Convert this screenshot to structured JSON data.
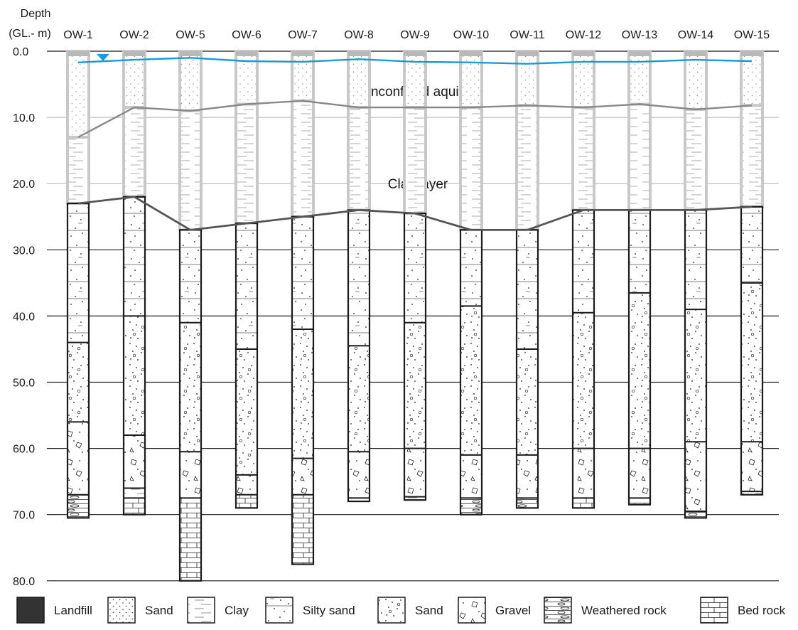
{
  "axis": {
    "title_line1": "Depth",
    "title_line2": "(GL.- m)",
    "ticks": [
      "0.0",
      "10.0",
      "20.0",
      "30.0",
      "40.0",
      "50.0",
      "60.0",
      "70.0",
      "80.0"
    ]
  },
  "region_labels": {
    "aquifer": "Unconfined aquifer",
    "clay": "Clay layer"
  },
  "colors": {
    "water_table": "#1a9ad6",
    "upper_column": "#c8c8c8",
    "boundary": "#888888",
    "ink": "#1a1a1a"
  },
  "wells": [
    {
      "name": "OW-1",
      "aquifer_bottom": 13.0,
      "clay_bottom": 23.0,
      "total_depth": 70.5,
      "lower": [
        [
          "silty_sand",
          23.0,
          44.0
        ],
        [
          "sand",
          44.0,
          56.0
        ],
        [
          "gravel",
          56.0,
          67.0
        ],
        [
          "weathered_rock",
          67.0,
          70.5
        ]
      ]
    },
    {
      "name": "OW-2",
      "aquifer_bottom": 8.5,
      "clay_bottom": 22.0,
      "total_depth": 70.0,
      "lower": [
        [
          "silty_sand",
          22.0,
          40.0
        ],
        [
          "sand",
          40.0,
          58.0
        ],
        [
          "gravel",
          58.0,
          66.0
        ],
        [
          "clay",
          66.0,
          67.5
        ],
        [
          "bed_rock",
          67.5,
          70.0
        ]
      ]
    },
    {
      "name": "OW-5",
      "aquifer_bottom": 9.0,
      "clay_bottom": 27.0,
      "total_depth": 80.0,
      "lower": [
        [
          "silty_sand",
          27.0,
          41.0
        ],
        [
          "sand",
          41.0,
          60.5
        ],
        [
          "gravel",
          60.5,
          67.5
        ],
        [
          "bed_rock",
          67.5,
          80.0
        ]
      ]
    },
    {
      "name": "OW-6",
      "aquifer_bottom": 8.0,
      "clay_bottom": 26.0,
      "total_depth": 69.0,
      "lower": [
        [
          "silty_sand",
          26.0,
          45.0
        ],
        [
          "sand",
          45.0,
          64.0
        ],
        [
          "gravel",
          64.0,
          67.0
        ],
        [
          "bed_rock",
          67.0,
          69.0
        ]
      ]
    },
    {
      "name": "OW-7",
      "aquifer_bottom": 7.5,
      "clay_bottom": 25.0,
      "total_depth": 77.5,
      "lower": [
        [
          "silty_sand",
          25.0,
          42.0
        ],
        [
          "sand",
          42.0,
          61.5
        ],
        [
          "gravel",
          61.5,
          67.0
        ],
        [
          "bed_rock",
          67.0,
          77.5
        ]
      ]
    },
    {
      "name": "OW-8",
      "aquifer_bottom": 8.5,
      "clay_bottom": 24.0,
      "total_depth": 68.0,
      "lower": [
        [
          "silty_sand",
          24.0,
          44.5
        ],
        [
          "sand",
          44.5,
          60.5
        ],
        [
          "gravel",
          60.5,
          67.5
        ],
        [
          "clay",
          67.5,
          68.0
        ]
      ]
    },
    {
      "name": "OW-9",
      "aquifer_bottom": 8.5,
      "clay_bottom": 24.5,
      "total_depth": 67.8,
      "lower": [
        [
          "silty_sand",
          24.5,
          41.0
        ],
        [
          "sand",
          41.0,
          60.0
        ],
        [
          "gravel",
          60.0,
          67.3
        ],
        [
          "clay",
          67.3,
          67.8
        ]
      ]
    },
    {
      "name": "OW-10",
      "aquifer_bottom": 8.5,
      "clay_bottom": 27.0,
      "total_depth": 70.0,
      "lower": [
        [
          "silty_sand",
          27.0,
          38.5
        ],
        [
          "sand",
          38.5,
          61.0
        ],
        [
          "gravel",
          61.0,
          67.5
        ],
        [
          "weathered_rock",
          67.5,
          70.0
        ]
      ]
    },
    {
      "name": "OW-11",
      "aquifer_bottom": 8.2,
      "clay_bottom": 27.0,
      "total_depth": 69.0,
      "lower": [
        [
          "silty_sand",
          27.0,
          45.0
        ],
        [
          "sand",
          45.0,
          61.0
        ],
        [
          "gravel",
          61.0,
          67.5
        ],
        [
          "weathered_rock",
          67.5,
          69.0
        ]
      ]
    },
    {
      "name": "OW-12",
      "aquifer_bottom": 8.5,
      "clay_bottom": 24.0,
      "total_depth": 69.0,
      "lower": [
        [
          "silty_sand",
          24.0,
          39.5
        ],
        [
          "sand",
          39.5,
          60.0
        ],
        [
          "gravel",
          60.0,
          67.5
        ],
        [
          "bed_rock",
          67.5,
          69.0
        ]
      ]
    },
    {
      "name": "OW-13",
      "aquifer_bottom": 8.0,
      "clay_bottom": 24.0,
      "total_depth": 68.5,
      "lower": [
        [
          "silty_sand",
          24.0,
          36.5
        ],
        [
          "sand",
          36.5,
          60.0
        ],
        [
          "gravel",
          60.0,
          67.5
        ],
        [
          "bed_rock",
          67.5,
          68.5
        ]
      ]
    },
    {
      "name": "OW-14",
      "aquifer_bottom": 8.8,
      "clay_bottom": 24.0,
      "total_depth": 70.5,
      "lower": [
        [
          "silty_sand",
          24.0,
          39.0
        ],
        [
          "sand",
          39.0,
          59.0
        ],
        [
          "gravel",
          59.0,
          69.5
        ],
        [
          "weathered_rock",
          69.5,
          70.5
        ]
      ]
    },
    {
      "name": "OW-15",
      "aquifer_bottom": 8.2,
      "clay_bottom": 23.5,
      "total_depth": 67.0,
      "lower": [
        [
          "silty_sand",
          23.5,
          35.0
        ],
        [
          "sand",
          35.0,
          59.0
        ],
        [
          "gravel",
          59.0,
          66.5
        ],
        [
          "clay",
          66.5,
          67.0
        ]
      ]
    }
  ],
  "water_table_depths": [
    1.7,
    1.3,
    1.0,
    1.5,
    1.6,
    1.2,
    1.6,
    1.7,
    1.9,
    1.6,
    1.6,
    1.3,
    1.5
  ],
  "legend": [
    {
      "key": "landfill",
      "label": "Landfill"
    },
    {
      "key": "fine_sand",
      "label": "Sand"
    },
    {
      "key": "clay",
      "label": "Clay"
    },
    {
      "key": "silty_sand",
      "label": "Silty sand"
    },
    {
      "key": "sand",
      "label": "Sand"
    },
    {
      "key": "gravel",
      "label": "Gravel"
    },
    {
      "key": "weathered_rock",
      "label": "Weathered rock"
    },
    {
      "key": "bed_rock",
      "label": "Bed rock"
    }
  ]
}
